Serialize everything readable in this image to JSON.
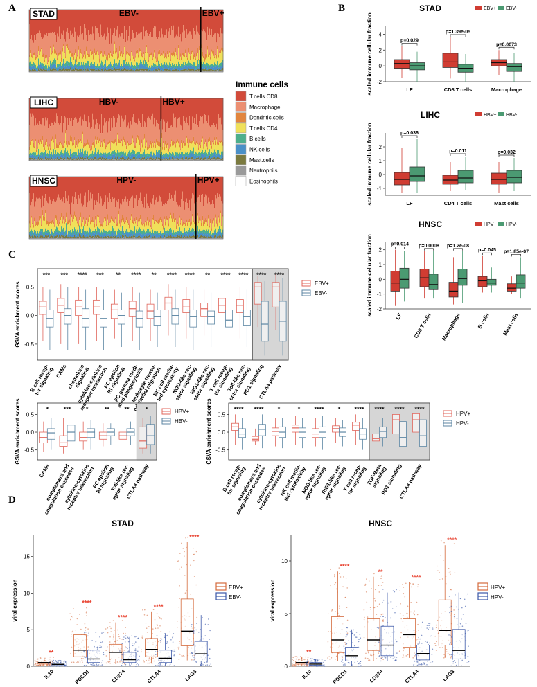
{
  "panel_labels": [
    "A",
    "B",
    "C",
    "D"
  ],
  "panelA": {
    "tracks": [
      {
        "cancer": "STAD",
        "left": "EBV-",
        "right": "EBV+",
        "split": 0.885
      },
      {
        "cancer": "LIHC",
        "left": "HBV-",
        "right": "HBV+",
        "split": 0.68
      },
      {
        "cancer": "HNSC",
        "left": "HPV-",
        "right": "HPV+",
        "split": 0.86
      }
    ],
    "legend_title": "Immune cells",
    "cells": [
      {
        "name": "T.cells.CD8",
        "color": "#d24b3a"
      },
      {
        "name": "Macrophage",
        "color": "#ec8f72"
      },
      {
        "name": "Dendritic.cells",
        "color": "#e2853e"
      },
      {
        "name": "T.cells.CD4",
        "color": "#f0e05a"
      },
      {
        "name": "B.cells",
        "color": "#4daf8c"
      },
      {
        "name": "NK.cells",
        "color": "#4a90c8"
      },
      {
        "name": "Mast.cells",
        "color": "#7b7a3f"
      },
      {
        "name": "Neutrophils",
        "color": "#9a9a9a"
      },
      {
        "name": "Eosinophils",
        "color": "#ffffff"
      }
    ]
  },
  "panelB": {
    "ylabel": "scaled immune cellular fraction",
    "colors": {
      "pos": "#d03c32",
      "neg": "#4b9a72"
    },
    "charts": [
      {
        "title": "STAD",
        "legend": [
          "EBV+",
          "EBV-"
        ],
        "ylim": [
          -2,
          5
        ],
        "yticks": [
          -2,
          0,
          2,
          4
        ],
        "categories": [
          "LF",
          "CD8 T cells",
          "Macrophage"
        ],
        "pvalues": [
          "p=0.029",
          "p=1.39e-05",
          "p=0.0073"
        ],
        "pos": [
          [
            -1.5,
            -0.3,
            0.3,
            0.8,
            2.5
          ],
          [
            -1.6,
            -0.2,
            0.5,
            1.6,
            3.6
          ],
          [
            -1.2,
            0.0,
            0.4,
            0.8,
            2.0
          ]
        ],
        "neg": [
          [
            -2.0,
            -0.5,
            0.0,
            0.4,
            1.8
          ],
          [
            -2.0,
            -0.8,
            -0.3,
            0.2,
            1.5
          ],
          [
            -2.0,
            -0.7,
            -0.1,
            0.3,
            1.6
          ]
        ]
      },
      {
        "title": "LIHC",
        "legend": [
          "HBV+",
          "HBV-"
        ],
        "ylim": [
          -1.5,
          3
        ],
        "yticks": [
          -1,
          0,
          1,
          2
        ],
        "categories": [
          "LF",
          "CD4 T cells",
          "Mast cells"
        ],
        "pvalues": [
          "p=0.036",
          "p=0.011",
          "p=0.032"
        ],
        "pos": [
          [
            -1.3,
            -0.75,
            -0.35,
            0.15,
            1.9
          ],
          [
            -1.2,
            -0.7,
            -0.4,
            -0.05,
            0.9
          ],
          [
            -1.3,
            -0.7,
            -0.35,
            0.1,
            0.9
          ]
        ],
        "neg": [
          [
            -1.3,
            -0.5,
            -0.1,
            0.55,
            2.6
          ],
          [
            -1.1,
            -0.6,
            -0.25,
            0.3,
            1.3
          ],
          [
            -1.2,
            -0.6,
            -0.2,
            0.3,
            1.2
          ]
        ]
      },
      {
        "title": "HNSC",
        "legend": [
          "HPV+",
          "HPV-"
        ],
        "ylim": [
          -2,
          2.5
        ],
        "yticks": [
          -2,
          -1,
          0,
          1,
          2
        ],
        "categories": [
          "LF",
          "CD8 T cells",
          "Macrophage",
          "B cells",
          "Mast cells"
        ],
        "pvalues": [
          "p=0.014",
          "p=0.0008",
          "p=1.2e-08",
          "p=0.045",
          "p=1.85e-07"
        ],
        "pos": [
          [
            -1.8,
            -0.8,
            -0.25,
            0.55,
            2.0
          ],
          [
            -1.3,
            -0.5,
            0.1,
            0.7,
            1.9
          ],
          [
            -1.7,
            -1.2,
            -0.8,
            -0.2,
            1.5
          ],
          [
            -0.9,
            -0.5,
            -0.1,
            0.2,
            1.6
          ],
          [
            -1.0,
            -0.8,
            -0.6,
            -0.3,
            0.2
          ]
        ],
        "neg": [
          [
            -1.5,
            -0.6,
            0.0,
            0.75,
            1.9
          ],
          [
            -1.3,
            -0.7,
            -0.35,
            0.35,
            1.9
          ],
          [
            -1.6,
            -0.4,
            0.05,
            0.7,
            1.9
          ],
          [
            -0.9,
            -0.4,
            -0.25,
            0.0,
            0.8
          ],
          [
            -1.3,
            -0.6,
            -0.25,
            0.3,
            1.5
          ]
        ]
      }
    ]
  },
  "panelC": {
    "ylabel": "GSVA enrichment scores",
    "colors": {
      "pos": "#e0655b",
      "neg": "#5c86a3"
    },
    "charts": [
      {
        "legend": [
          "EBV+",
          "EBV-"
        ],
        "highlight": 2,
        "categories": [
          "B cell recep-\ntor signaling",
          "CAMs",
          "chemokine\nsignaling",
          "cytokine-cytokine\nreceptor interaction",
          "FC epsilon\nRI signaling",
          "FC gamma medi-\nated phagocytosis",
          "leukocyte transe-\nndothelial migration",
          "NK cell media-\nted cytotoxicity",
          "NOD-like rec-\neptor signaling",
          "RIG1-like rec-\neptor signaling",
          "T cell recep-\ntor signaling",
          "Toll-like rec-\neptor signaling",
          "PD1 signaling",
          "CTLA4 pathway"
        ],
        "stars": [
          "***",
          "***",
          "****",
          "***",
          "**",
          "****",
          "**",
          "****",
          "****",
          "**",
          "****",
          "****",
          "****",
          "****"
        ],
        "pos": [
          [
            -0.45,
            0.02,
            0.15,
            0.25,
            0.5
          ],
          [
            -0.5,
            0.05,
            0.18,
            0.3,
            0.55
          ],
          [
            -0.5,
            0.0,
            0.15,
            0.27,
            0.5
          ],
          [
            -0.45,
            0.02,
            0.15,
            0.27,
            0.5
          ],
          [
            -0.4,
            -0.05,
            0.1,
            0.2,
            0.45
          ],
          [
            -0.45,
            -0.02,
            0.12,
            0.25,
            0.5
          ],
          [
            -0.45,
            -0.05,
            0.08,
            0.2,
            0.45
          ],
          [
            -0.35,
            0.1,
            0.22,
            0.32,
            0.55
          ],
          [
            -0.4,
            0.05,
            0.15,
            0.28,
            0.5
          ],
          [
            -0.35,
            -0.02,
            0.12,
            0.22,
            0.45
          ],
          [
            -0.45,
            0.05,
            0.18,
            0.3,
            0.55
          ],
          [
            -0.4,
            0.05,
            0.18,
            0.28,
            0.5
          ],
          [
            -0.2,
            0.2,
            0.5,
            0.58,
            0.7
          ],
          [
            -0.25,
            0.15,
            0.5,
            0.58,
            0.72
          ]
        ],
        "neg": [
          [
            -0.6,
            -0.2,
            -0.05,
            0.1,
            0.45
          ],
          [
            -0.6,
            -0.15,
            0.0,
            0.12,
            0.5
          ],
          [
            -0.6,
            -0.2,
            -0.05,
            0.12,
            0.45
          ],
          [
            -0.6,
            -0.2,
            -0.05,
            0.1,
            0.45
          ],
          [
            -0.55,
            -0.15,
            0.0,
            0.1,
            0.4
          ],
          [
            -0.6,
            -0.2,
            -0.05,
            0.08,
            0.4
          ],
          [
            -0.55,
            -0.18,
            -0.02,
            0.1,
            0.4
          ],
          [
            -0.55,
            -0.15,
            0.0,
            0.12,
            0.45
          ],
          [
            -0.6,
            -0.2,
            -0.02,
            0.1,
            0.45
          ],
          [
            -0.55,
            -0.15,
            -0.02,
            0.08,
            0.4
          ],
          [
            -0.6,
            -0.2,
            -0.08,
            0.1,
            0.45
          ],
          [
            -0.55,
            -0.18,
            -0.02,
            0.1,
            0.45
          ],
          [
            -0.7,
            -0.45,
            -0.15,
            0.25,
            0.6
          ],
          [
            -0.7,
            -0.45,
            -0.1,
            0.25,
            0.65
          ]
        ]
      },
      {
        "legend": [
          "HBV+",
          "HBV-"
        ],
        "highlight": 1,
        "categories": [
          "CAMs",
          "complement and\ncoagulation cascades",
          "cytokine-cytokine\nreceptor interaction",
          "FC epsilon\nRI signaling",
          "Toll-like rec-\neptor signaling",
          "CTLA4 pathway"
        ],
        "stars": [
          "*",
          "***",
          "*",
          "**",
          "**",
          "*"
        ],
        "pos": [
          [
            -0.55,
            -0.3,
            -0.15,
            0.0,
            0.3
          ],
          [
            -0.6,
            -0.4,
            -0.3,
            -0.1,
            0.4
          ],
          [
            -0.5,
            -0.25,
            -0.15,
            0.0,
            0.3
          ],
          [
            -0.4,
            -0.2,
            -0.1,
            0.0,
            0.25
          ],
          [
            -0.4,
            -0.2,
            -0.1,
            0.0,
            0.25
          ],
          [
            -0.6,
            -0.45,
            -0.25,
            0.15,
            0.4
          ]
        ],
        "neg": [
          [
            -0.5,
            -0.2,
            -0.02,
            0.1,
            0.4
          ],
          [
            -0.55,
            -0.25,
            0.0,
            0.2,
            0.45
          ],
          [
            -0.5,
            -0.15,
            0.0,
            0.1,
            0.35
          ],
          [
            -0.35,
            -0.1,
            0.0,
            0.1,
            0.25
          ],
          [
            -0.35,
            -0.1,
            0.0,
            0.1,
            0.3
          ],
          [
            -0.6,
            -0.35,
            -0.1,
            0.22,
            0.45
          ]
        ]
      },
      {
        "legend": [
          "HPV+",
          "HPV-"
        ],
        "highlight": 3,
        "categories": [
          "B cell recep-\ntor signaling",
          "complement and\ncoagulation cascades",
          "cytokine-cytokine\nreceptor interaction",
          "NK cell media-\nted cytotoxicity",
          "NOD-like rec-\neptor signaling",
          "RIG1-like rec-\neptor signaling",
          "T cell recep-\ntor signaling",
          "TGF-Beta\nsignaling",
          "PD1 signaling",
          "CTLA4 pathway"
        ],
        "stars": [
          "****",
          "****",
          "*",
          "*",
          "****",
          "*",
          "****",
          "****",
          "****",
          "****"
        ],
        "pos": [
          [
            -0.35,
            0.05,
            0.15,
            0.25,
            0.5
          ],
          [
            -0.35,
            -0.25,
            -0.2,
            -0.12,
            0.1
          ],
          [
            -0.4,
            -0.1,
            0.02,
            0.12,
            0.4
          ],
          [
            -0.35,
            0.0,
            0.12,
            0.2,
            0.45
          ],
          [
            -0.4,
            -0.15,
            -0.05,
            0.1,
            0.4
          ],
          [
            -0.3,
            0.0,
            0.1,
            0.18,
            0.4
          ],
          [
            -0.35,
            0.05,
            0.2,
            0.28,
            0.5
          ],
          [
            -0.35,
            -0.25,
            -0.18,
            -0.05,
            0.25
          ],
          [
            -0.4,
            -0.05,
            0.35,
            0.5,
            0.7
          ],
          [
            -0.4,
            0.0,
            0.35,
            0.52,
            0.75
          ]
        ],
        "neg": [
          [
            -0.5,
            -0.15,
            -0.05,
            0.1,
            0.4
          ],
          [
            -0.45,
            -0.1,
            0.08,
            0.22,
            0.5
          ],
          [
            -0.45,
            -0.15,
            0.0,
            0.15,
            0.4
          ],
          [
            -0.45,
            -0.15,
            0.0,
            0.12,
            0.4
          ],
          [
            -0.5,
            -0.15,
            0.0,
            0.15,
            0.45
          ],
          [
            -0.4,
            -0.12,
            0.0,
            0.12,
            0.35
          ],
          [
            -0.5,
            -0.2,
            -0.05,
            0.1,
            0.4
          ],
          [
            -0.4,
            -0.15,
            0.02,
            0.15,
            0.4
          ],
          [
            -0.6,
            -0.4,
            -0.15,
            0.3,
            0.65
          ],
          [
            -0.6,
            -0.4,
            -0.1,
            0.35,
            0.7
          ]
        ]
      }
    ]
  },
  "panelD": {
    "ylabel": "viral expression",
    "colors": {
      "pos": "#d46a3c",
      "neg": "#3b58a8",
      "star": "#e8402e"
    },
    "charts": [
      {
        "title": "STAD",
        "legend": [
          "EBV+",
          "EBV-"
        ],
        "ylim": [
          0,
          18
        ],
        "yticks": [
          0,
          5,
          10,
          15
        ],
        "categories": [
          "IL10",
          "PDCD1",
          "CD274",
          "CTLA4",
          "LAG3"
        ],
        "stars": [
          "**",
          "****",
          "****",
          "****",
          "****"
        ],
        "pos": [
          [
            0.1,
            0.3,
            0.5,
            0.7,
            1.2
          ],
          [
            0.5,
            1.3,
            2.2,
            4.3,
            8.0
          ],
          [
            0.3,
            1.0,
            1.9,
            3.0,
            6.0
          ],
          [
            0.4,
            1.3,
            2.3,
            3.8,
            7.5
          ],
          [
            0.8,
            2.8,
            4.8,
            9.2,
            17.0
          ]
        ],
        "neg": [
          [
            0.0,
            0.1,
            0.25,
            0.4,
            0.8
          ],
          [
            0.0,
            0.5,
            1.0,
            2.2,
            4.5
          ],
          [
            0.0,
            0.5,
            0.9,
            1.9,
            4.0
          ],
          [
            0.0,
            0.5,
            1.1,
            2.2,
            4.5
          ],
          [
            0.0,
            0.7,
            1.7,
            3.4,
            7.0
          ]
        ]
      },
      {
        "title": "HNSC",
        "legend": [
          "HPV+",
          "HPV-"
        ],
        "ylim": [
          0,
          12.5
        ],
        "yticks": [
          0,
          5,
          10
        ],
        "categories": [
          "IL10",
          "PDCD1",
          "CD274",
          "CTLA4",
          "LAG3"
        ],
        "stars": [
          "**",
          "****",
          "**",
          "****",
          "****"
        ],
        "pos": [
          [
            0.0,
            0.2,
            0.35,
            0.5,
            0.9
          ],
          [
            0.5,
            1.3,
            2.5,
            4.7,
            9.0
          ],
          [
            0.5,
            1.5,
            2.5,
            4.5,
            8.5
          ],
          [
            0.8,
            1.8,
            3.0,
            4.5,
            8.0
          ],
          [
            0.8,
            2.0,
            3.4,
            6.3,
            11.5
          ]
        ],
        "neg": [
          [
            0.0,
            0.1,
            0.2,
            0.35,
            0.7
          ],
          [
            0.0,
            0.5,
            1.0,
            1.8,
            3.5
          ],
          [
            0.5,
            1.0,
            2.0,
            3.8,
            7.0
          ],
          [
            0.0,
            0.6,
            1.2,
            2.0,
            4.0
          ],
          [
            0.0,
            0.7,
            1.5,
            3.5,
            7.0
          ]
        ]
      }
    ]
  }
}
